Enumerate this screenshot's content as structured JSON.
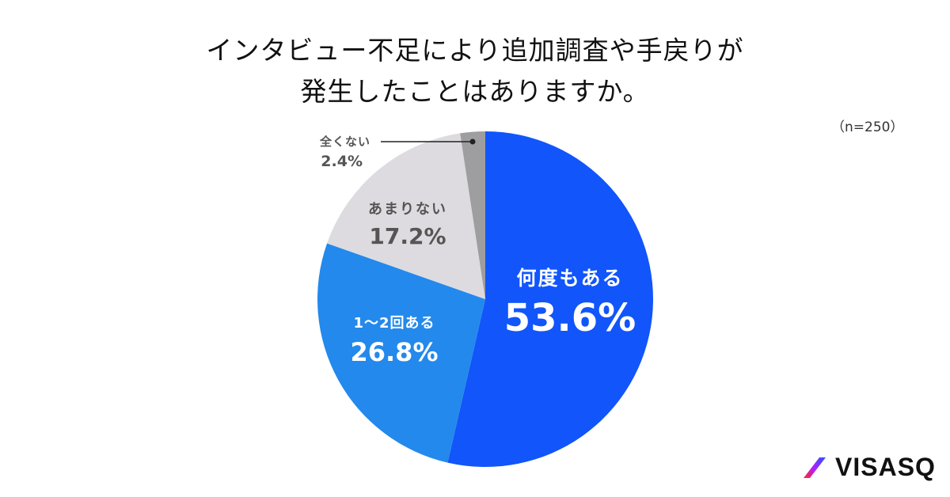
{
  "title": {
    "line1": "インタビュー不足により追加調査や手戻りが",
    "line2": "発生したことはありますか。"
  },
  "sample_size": "（n=250）",
  "brand": {
    "name": "VISASQ"
  },
  "labels": {
    "s0": {
      "name": "何度もある",
      "value": "53.6%"
    },
    "s1": {
      "name": "1〜2回ある",
      "value": "26.8%"
    },
    "s2": {
      "name": "あまりない",
      "value": "17.2%"
    },
    "s3": {
      "name": "全くない",
      "value": "2.4%"
    }
  },
  "chart_data": {
    "type": "pie",
    "title": "インタビュー不足により追加調査や手戻りが発生したことはありますか。",
    "subtitle": "(n=250)",
    "categories": [
      "何度もある",
      "1〜2回ある",
      "あまりない",
      "全くない"
    ],
    "values": [
      53.6,
      26.8,
      17.2,
      2.4
    ],
    "colors": [
      "#1155fb",
      "#2389ec",
      "#dddbdf",
      "#9e9ea0"
    ],
    "start_angle": "12 o'clock, clockwise",
    "legend": "none (inline labels)"
  }
}
